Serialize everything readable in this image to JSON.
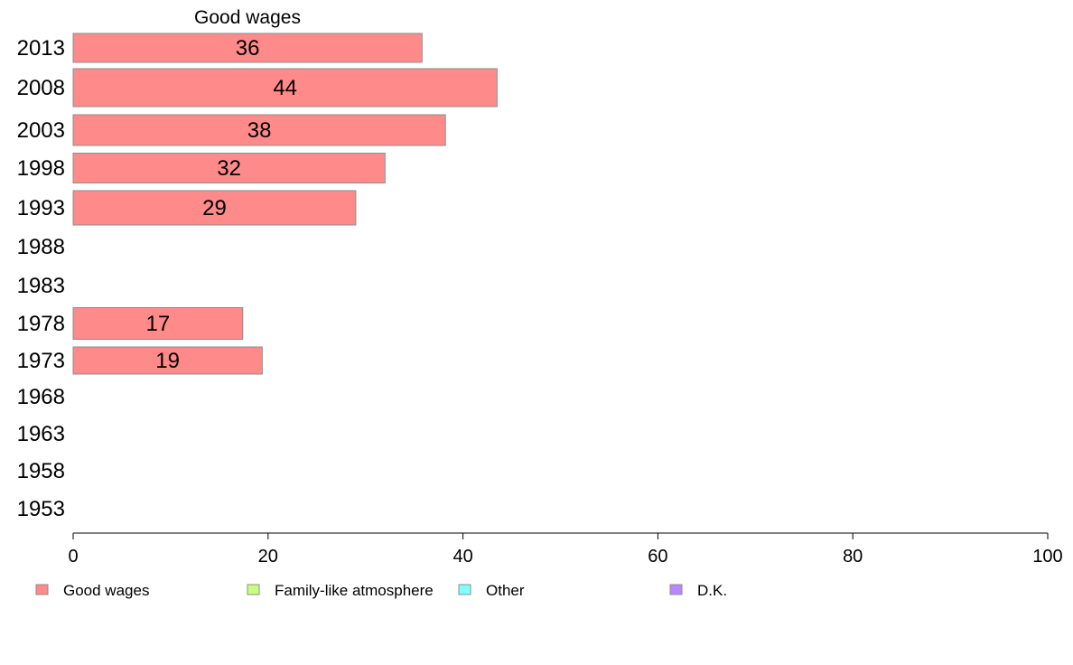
{
  "chart_data": {
    "type": "bar",
    "orientation": "horizontal",
    "title": "Good wages",
    "categories": [
      "2013",
      "2008",
      "2003",
      "1998",
      "1993",
      "1988",
      "1983",
      "1978",
      "1973",
      "1968",
      "1963",
      "1958",
      "1953"
    ],
    "series": [
      {
        "name": "Good wages",
        "values": [
          35.8,
          43.5,
          38.2,
          32.0,
          29.0,
          null,
          null,
          17.4,
          19.4,
          null,
          null,
          null,
          null
        ],
        "labels": [
          "36",
          "44",
          "38",
          "32",
          "29",
          "",
          "",
          "17",
          "19",
          "",
          "",
          "",
          ""
        ]
      }
    ],
    "xlim": [
      0,
      100
    ],
    "xticks": [
      "0",
      "20",
      "40",
      "60",
      "80",
      "100"
    ],
    "grid": false,
    "legend": {
      "position": "bottom",
      "entries": [
        {
          "label": "Good wages",
          "color": "#ff8a8a"
        },
        {
          "label": "Family-like atmosphere",
          "color": "#c8ff80"
        },
        {
          "label": "Other",
          "color": "#80ffff"
        },
        {
          "label": "D.K.",
          "color": "#b987ff"
        }
      ]
    },
    "colors": {
      "bar_fill": "#ff8a8a",
      "bar_stroke": "#8c8c8c",
      "axis": "#000000"
    }
  }
}
